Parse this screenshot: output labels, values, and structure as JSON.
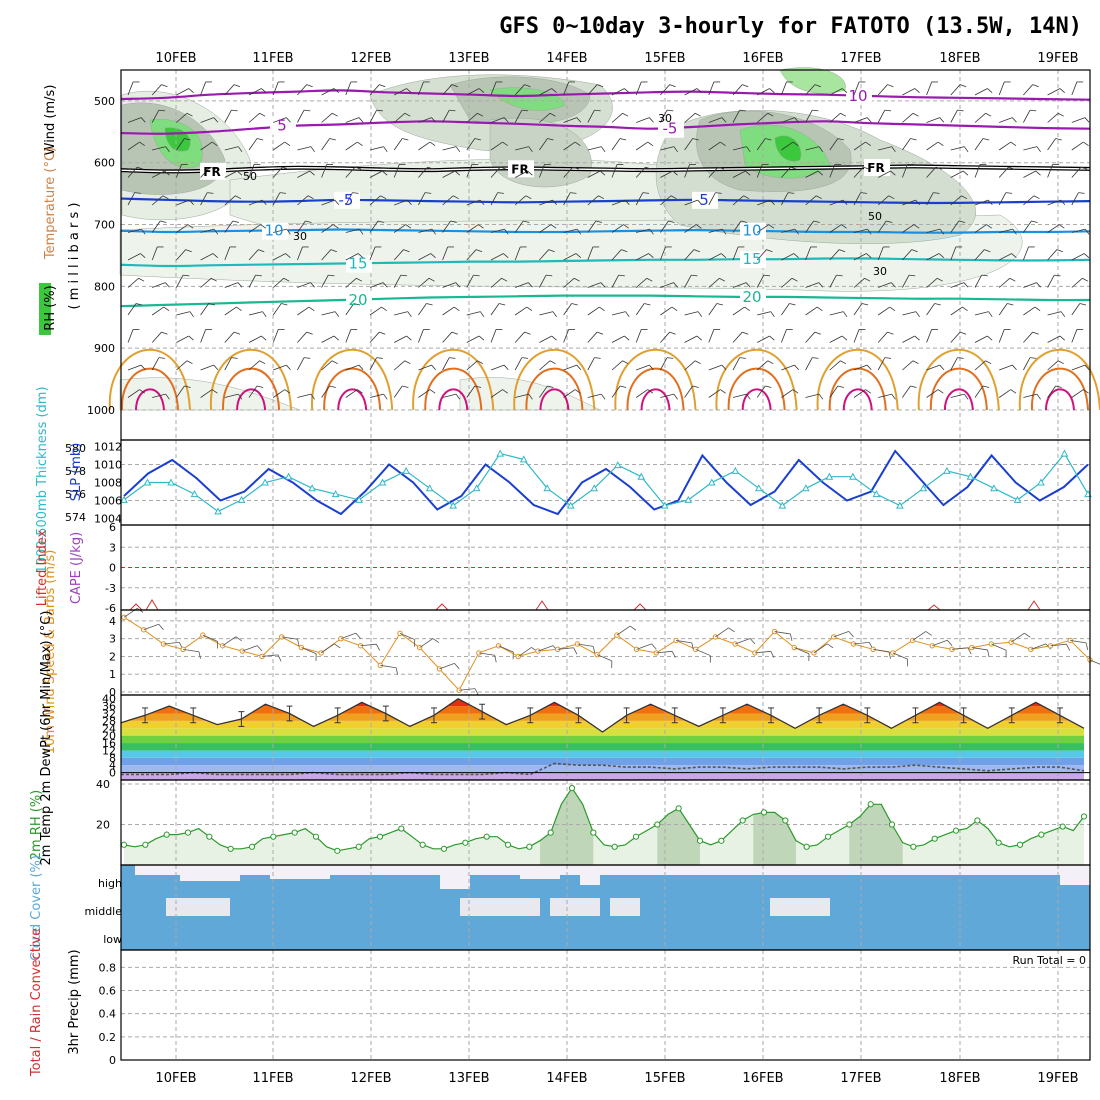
{
  "title": "GFS 0~10day 3-hourly for FATOTO (13.5W, 14N)",
  "colors": {
    "frame": "#000000",
    "grid": "#aaaaaa",
    "thickness": "#30b8c8",
    "slp": "#1a3fd0",
    "lifted_index": "#d03030",
    "cape": "#a040c0",
    "wind10m": "#e09020",
    "rh2m": "#2a9a2a",
    "cloud": "#5fa8d8",
    "rh_green": "#3cc83c",
    "rh_gray": "#b8c4b4"
  },
  "chart_data": [
    {
      "type": "heatmap",
      "panel": "upper-air",
      "ylabels": [
        "Wind (m/s)",
        "Temperature (°C)",
        "RH (%)",
        "( m i l l i b a r s )"
      ],
      "y_ticks": [
        "500",
        "600",
        "700",
        "800",
        "900",
        "1000"
      ],
      "ylim": [
        1000,
        450
      ],
      "x_ticks": [
        "10FEB",
        "11FEB",
        "12FEB",
        "13FEB",
        "14FEB",
        "15FEB",
        "16FEB",
        "17FEB",
        "18FEB",
        "19FEB"
      ],
      "contour_labels": [
        "10",
        "5",
        "-5",
        "FR",
        "-5",
        "5",
        "10",
        "15",
        "20",
        "30",
        "50"
      ],
      "isotherms": [
        {
          "label": "-10",
          "color": "#9a1ab0",
          "p": [
            497,
            495,
            490,
            487,
            485,
            483,
            486,
            488,
            490,
            492,
            490,
            488,
            486,
            485,
            487,
            489,
            490,
            492,
            494,
            495,
            496,
            497,
            498
          ]
        },
        {
          "label": "-5",
          "color": "#9a1ab0",
          "p": [
            552,
            553,
            550,
            545,
            540,
            538,
            535,
            533,
            535,
            537,
            540,
            542,
            545,
            542,
            538,
            535,
            533,
            536,
            538,
            540,
            542,
            544,
            545
          ]
        },
        {
          "label": "FR",
          "color": "#000000",
          "p": [
            612,
            614,
            613,
            610,
            608,
            609,
            611,
            612,
            610,
            609,
            610,
            611,
            612,
            611,
            610,
            609,
            608,
            607,
            606,
            607,
            608,
            609,
            610
          ]
        },
        {
          "label": "-5",
          "color": "#1a3fd0",
          "p": [
            658,
            660,
            662,
            663,
            662,
            660,
            661,
            662,
            663,
            664,
            663,
            662,
            661,
            660,
            661,
            662,
            663,
            664,
            665,
            665,
            664,
            663,
            662
          ]
        },
        {
          "label": "10",
          "color": "#1a90e0",
          "p": [
            710,
            712,
            711,
            710,
            709,
            708,
            709,
            710,
            711,
            712,
            712,
            711,
            710,
            709,
            710,
            711,
            712,
            712,
            713,
            713,
            712,
            712,
            711
          ]
        },
        {
          "label": "15",
          "color": "#20b8b8",
          "p": [
            765,
            767,
            766,
            765,
            764,
            763,
            762,
            761,
            760,
            760,
            759,
            758,
            757,
            757,
            756,
            756,
            755,
            755,
            756,
            757,
            758,
            758,
            757
          ]
        },
        {
          "label": "20",
          "color": "#18b890",
          "p": [
            832,
            830,
            828,
            826,
            824,
            822,
            820,
            818,
            817,
            816,
            815,
            815,
            815,
            816,
            817,
            817,
            818,
            819,
            820,
            820,
            821,
            822,
            822
          ]
        }
      ]
    },
    {
      "type": "line",
      "panel": "thickness-slp",
      "ylabel_left": "1000-500mb Thickness (dm)",
      "ylabel_right": "SLP (mb)",
      "thickness_ticks": [
        "574",
        "576",
        "578",
        "580"
      ],
      "slp_ticks": [
        "1004",
        "1006",
        "1008",
        "1010",
        "1012"
      ],
      "thickness_ylim": [
        573.5,
        580.5
      ],
      "slp_ylim": [
        1003.5,
        1012.5
      ],
      "slp": [
        1006.5,
        1009,
        1010.5,
        1008.5,
        1006,
        1007,
        1009.5,
        1008,
        1006,
        1004.5,
        1007,
        1010,
        1008,
        1005,
        1006.5,
        1010,
        1008,
        1005.5,
        1004.5,
        1008,
        1009.5,
        1007.5,
        1005,
        1006,
        1011,
        1008,
        1005.5,
        1007,
        1010.5,
        1008,
        1006,
        1007,
        1011.5,
        1008.5,
        1005.5,
        1007.5,
        1011,
        1008,
        1006,
        1007.5,
        1010
      ],
      "thickness": [
        575.5,
        577,
        577,
        576,
        574.5,
        575.5,
        577,
        577.5,
        576.5,
        576,
        575.5,
        577,
        578,
        576.5,
        575,
        576.5,
        579.5,
        579,
        576.5,
        575,
        576.5,
        578.5,
        577.5,
        575,
        575.5,
        577,
        578,
        576.5,
        575,
        576.5,
        577.5,
        577.5,
        576,
        575,
        576.5,
        578,
        577.5,
        576.5,
        575.5,
        577,
        579.5,
        576
      ]
    },
    {
      "type": "line",
      "panel": "stability",
      "ylabel_left": "Lifted Index",
      "ylabel_right": "CAPE (J/kg)",
      "y_ticks": [
        "6",
        "3",
        "0",
        "-3",
        "-6"
      ],
      "ylim": [
        -6,
        6
      ]
    },
    {
      "type": "line",
      "panel": "wind10m",
      "ylabel": "10m Wind Speed & Barbs (m/s)",
      "y_ticks": [
        "0",
        "1",
        "2",
        "3",
        "4"
      ],
      "ylim": [
        0,
        4.5
      ],
      "values": [
        4.2,
        3.5,
        2.7,
        2.4,
        3.2,
        2.6,
        2.3,
        2.0,
        3.1,
        2.5,
        2.2,
        3.0,
        2.6,
        1.5,
        3.3,
        2.5,
        1.3,
        0.1,
        2.2,
        2.6,
        2.0,
        2.3,
        2.4,
        2.7,
        2.1,
        3.2,
        2.4,
        2.2,
        2.9,
        2.4,
        3.1,
        2.7,
        2.2,
        3.4,
        2.5,
        2.2,
        3.1,
        2.7,
        2.4,
        2.2,
        2.9,
        2.6,
        2.4,
        2.5,
        2.7,
        2.8,
        2.4,
        2.6,
        2.9,
        1.8
      ]
    },
    {
      "type": "area",
      "panel": "temp2m",
      "ylabel": "2m Temp 2m DewPt (6hr Min/Max) (°C)",
      "y_ticks": [
        "40",
        "32",
        "24",
        "16",
        "8",
        "0"
      ],
      "ylim": [
        -4,
        42
      ],
      "temp": [
        27,
        31,
        36,
        31,
        26,
        29,
        37,
        32,
        25,
        31,
        38,
        32,
        25,
        31,
        40,
        33,
        26,
        31,
        38,
        31,
        22,
        31,
        37,
        31,
        25,
        31,
        37,
        31,
        24,
        31,
        37,
        31,
        24,
        31,
        38,
        31,
        24,
        31,
        38,
        31,
        24
      ],
      "dewpt": [
        -1,
        -1,
        -1,
        0,
        -1,
        -1,
        -1,
        -1,
        0,
        -1,
        -1,
        -1,
        0,
        -1,
        -1,
        -1,
        0,
        -1,
        5,
        4,
        4,
        3,
        3,
        2,
        3,
        3,
        2,
        3,
        3,
        3,
        2,
        3,
        3,
        4,
        3,
        2,
        1,
        2,
        3,
        3,
        1
      ]
    },
    {
      "type": "area",
      "panel": "rh2m",
      "ylabel": "2m RH (%)",
      "y_ticks": [
        "20",
        "40"
      ],
      "ylim": [
        0,
        42
      ],
      "values": [
        10,
        9,
        10,
        13,
        15,
        15,
        16,
        18,
        14,
        10,
        8,
        8,
        9,
        13,
        14,
        15,
        16,
        18,
        14,
        9,
        7,
        8,
        9,
        13,
        14,
        16,
        18,
        14,
        10,
        8,
        8,
        10,
        11,
        13,
        14,
        14,
        10,
        8,
        9,
        12,
        16,
        30,
        38,
        30,
        16,
        10,
        9,
        10,
        14,
        17,
        20,
        25,
        28,
        20,
        12,
        10,
        12,
        17,
        22,
        25,
        26,
        26,
        22,
        12,
        9,
        10,
        14,
        17,
        20,
        24,
        30,
        30,
        20,
        11,
        9,
        10,
        13,
        15,
        17,
        18,
        22,
        18,
        11,
        9,
        10,
        13,
        15,
        17,
        19,
        17,
        24
      ]
    },
    {
      "type": "heatmap",
      "panel": "cloud",
      "ylabel": "Cloud Cover (%)",
      "levels": [
        "high",
        "middle",
        "low"
      ]
    },
    {
      "type": "bar",
      "panel": "precip",
      "ylabel_left": "Total / Rain Convective",
      "ylabel_right": "3hr Precip (mm)",
      "y_ticks": [
        "0",
        "0.2",
        "0.4",
        "0.6",
        "0.8"
      ],
      "ylim": [
        0,
        0.95
      ],
      "run_total": "Run Total = 0",
      "values": []
    }
  ]
}
